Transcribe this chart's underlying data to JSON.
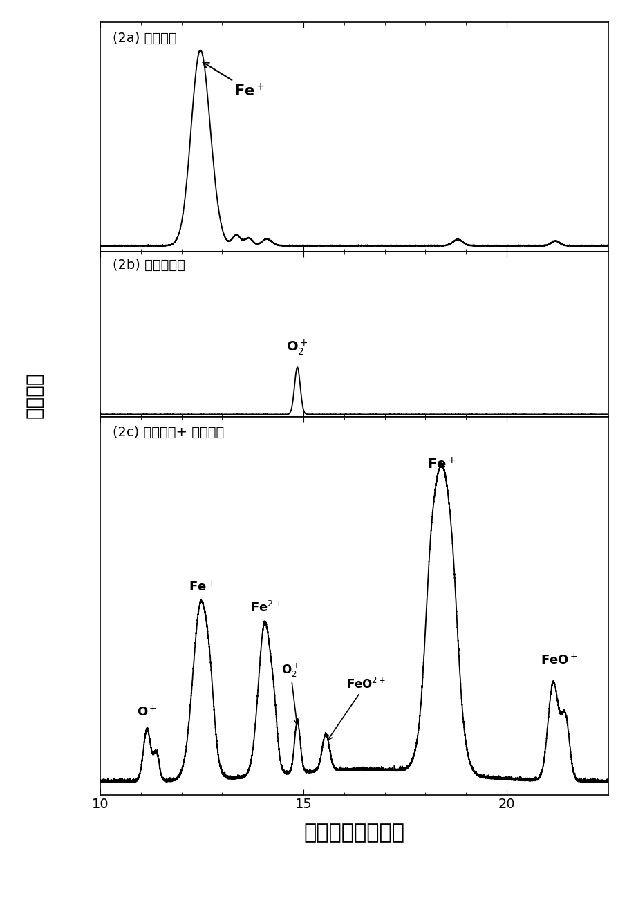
{
  "xlim": [
    10,
    22.5
  ],
  "xlabel": "飞行时间（微秒）",
  "ylabel": "离子强度",
  "panel_a_label": "(2a) 纳秒激光",
  "panel_b_label": "(2b) 飞秒秒激光",
  "panel_c_label": "(2c) 纳秒激光+ 飞秒激光",
  "background_color": "#ffffff",
  "line_color": "#000000",
  "xticks_major": [
    10,
    15,
    20
  ],
  "xticks_minor": [
    10,
    11,
    12,
    13,
    14,
    15,
    16,
    17,
    18,
    19,
    20,
    21,
    22
  ]
}
